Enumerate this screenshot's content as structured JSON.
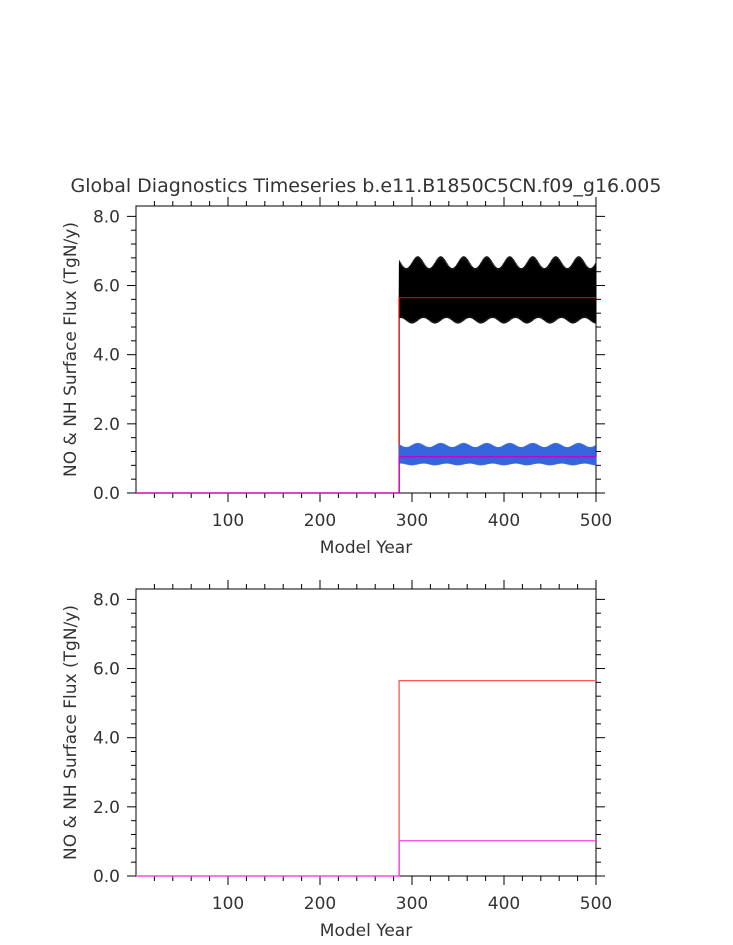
{
  "figure": {
    "title": "Global Diagnostics Timeseries b.e11.B1850C5CN.f09_g16.005"
  },
  "chart_data": [
    {
      "type": "line",
      "xlabel": "Model Year",
      "ylabel": "NO & NH Surface Flux (TgN/y)",
      "xlim": [
        0,
        500
      ],
      "ylim": [
        0,
        8.3
      ],
      "xticks": [
        100,
        200,
        300,
        400,
        500
      ],
      "xtick_labels": [
        "100",
        "200",
        "300",
        "400",
        "500"
      ],
      "yticks": [
        0,
        2,
        4,
        6,
        8
      ],
      "ytick_labels": [
        "0.0",
        "2.0",
        "4.0",
        "6.0",
        "8.0"
      ],
      "series": [
        {
          "color": "#000000",
          "style": "seasonal-band",
          "start": 286,
          "end": 500,
          "min": 4.9,
          "max": 6.85,
          "mean": 5.7
        },
        {
          "color": "#cc0000",
          "style": "annual-mean",
          "start": 286,
          "end": 500,
          "value": 5.65
        },
        {
          "color": "#3366dd",
          "style": "seasonal-band",
          "start": 286,
          "end": 500,
          "min": 0.8,
          "max": 1.45,
          "mean": 1.05
        },
        {
          "color": "#cc00cc",
          "style": "annual-mean",
          "start": 286,
          "end": 500,
          "value": 1.05
        }
      ]
    },
    {
      "type": "line",
      "xlabel": "Model Year",
      "ylabel": "NO & NH Surface Flux (TgN/y)",
      "xlim": [
        0,
        500
      ],
      "ylim": [
        0,
        8.3
      ],
      "xticks": [
        100,
        200,
        300,
        400,
        500
      ],
      "xtick_labels": [
        "100",
        "200",
        "300",
        "400",
        "500"
      ],
      "yticks": [
        0,
        2,
        4,
        6,
        8
      ],
      "ytick_labels": [
        "0.0",
        "2.0",
        "4.0",
        "6.0",
        "8.0"
      ],
      "series": [
        {
          "color": "#ff5555",
          "style": "annual-mean",
          "start": 286,
          "end": 500,
          "value": 5.65
        },
        {
          "color": "#ee44ee",
          "style": "annual-mean",
          "start": 286,
          "end": 500,
          "value": 1.02
        }
      ]
    }
  ]
}
